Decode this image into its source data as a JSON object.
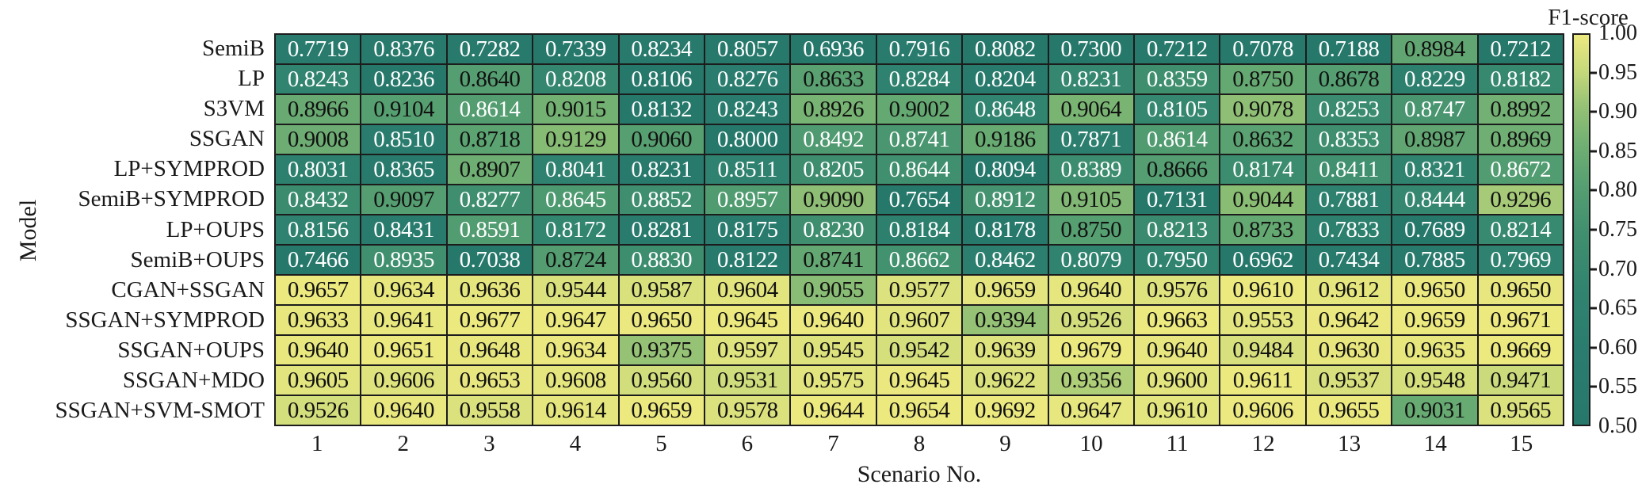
{
  "chart_data": {
    "type": "heatmap",
    "title": "",
    "xlabel": "Scenario No.",
    "ylabel": "Model",
    "x_categories": [
      "1",
      "2",
      "3",
      "4",
      "5",
      "6",
      "7",
      "8",
      "9",
      "10",
      "11",
      "12",
      "13",
      "14",
      "15"
    ],
    "models": [
      "SemiB",
      "LP",
      "S3VM",
      "SSGAN",
      "LP+SYMPROD",
      "SemiB+SYMPROD",
      "LP+OUPS",
      "SemiB+OUPS",
      "CGAN+SSGAN",
      "SSGAN+SYMPROD",
      "SSGAN+OUPS",
      "SSGAN+MDO",
      "SSGAN+SVM-SMOT"
    ],
    "values": [
      [
        0.7719,
        0.8376,
        0.7282,
        0.7339,
        0.8234,
        0.8057,
        0.6936,
        0.7916,
        0.8082,
        0.73,
        0.7212,
        0.7078,
        0.7188,
        0.8984,
        0.7212
      ],
      [
        0.8243,
        0.8236,
        0.864,
        0.8208,
        0.8106,
        0.8276,
        0.8633,
        0.8284,
        0.8204,
        0.8231,
        0.8359,
        0.875,
        0.8678,
        0.8229,
        0.8182
      ],
      [
        0.8966,
        0.9104,
        0.8614,
        0.9015,
        0.8132,
        0.8243,
        0.8926,
        0.9002,
        0.8648,
        0.9064,
        0.8105,
        0.9078,
        0.8253,
        0.8747,
        0.8992
      ],
      [
        0.9008,
        0.851,
        0.8718,
        0.9129,
        0.906,
        0.8,
        0.8492,
        0.8741,
        0.9186,
        0.7871,
        0.8614,
        0.8632,
        0.8353,
        0.8987,
        0.8969
      ],
      [
        0.8031,
        0.8365,
        0.8907,
        0.8041,
        0.8231,
        0.8511,
        0.8205,
        0.8644,
        0.8094,
        0.8389,
        0.8666,
        0.8174,
        0.8411,
        0.8321,
        0.8672
      ],
      [
        0.8432,
        0.9097,
        0.8277,
        0.8645,
        0.8852,
        0.8957,
        0.909,
        0.7654,
        0.8912,
        0.9105,
        0.7131,
        0.9044,
        0.7881,
        0.8444,
        0.9296
      ],
      [
        0.8156,
        0.8431,
        0.8591,
        0.8172,
        0.8281,
        0.8175,
        0.823,
        0.8184,
        0.8178,
        0.875,
        0.8213,
        0.8733,
        0.7833,
        0.7689,
        0.8214
      ],
      [
        0.7466,
        0.8935,
        0.7038,
        0.8724,
        0.883,
        0.8122,
        0.8741,
        0.8662,
        0.8462,
        0.8079,
        0.795,
        0.6962,
        0.7434,
        0.7885,
        0.7969
      ],
      [
        0.9657,
        0.9634,
        0.9636,
        0.9544,
        0.9587,
        0.9604,
        0.9055,
        0.9577,
        0.9659,
        0.964,
        0.9576,
        0.961,
        0.9612,
        0.965,
        0.965
      ],
      [
        0.9633,
        0.9641,
        0.9677,
        0.9647,
        0.965,
        0.9645,
        0.964,
        0.9607,
        0.9394,
        0.9526,
        0.9663,
        0.9553,
        0.9642,
        0.9659,
        0.9671
      ],
      [
        0.964,
        0.9651,
        0.9648,
        0.9634,
        0.9375,
        0.9597,
        0.9545,
        0.9542,
        0.9639,
        0.9679,
        0.964,
        0.9484,
        0.963,
        0.9635,
        0.9669
      ],
      [
        0.9605,
        0.9606,
        0.9653,
        0.9608,
        0.956,
        0.9531,
        0.9575,
        0.9645,
        0.9622,
        0.9356,
        0.96,
        0.9611,
        0.9537,
        0.9548,
        0.9471
      ],
      [
        0.9526,
        0.964,
        0.9558,
        0.9614,
        0.9659,
        0.9578,
        0.9644,
        0.9654,
        0.9692,
        0.9647,
        0.961,
        0.9606,
        0.9655,
        0.9031,
        0.9565
      ]
    ],
    "value_format_decimals": 4,
    "colorbar": {
      "label": "F1-score",
      "tick_labels": [
        "1.00",
        "0.95",
        "0.90",
        "0.85",
        "0.80",
        "0.75",
        "0.70",
        "0.65",
        "0.60",
        "0.55",
        "0.50"
      ],
      "vmin": 0.5,
      "vmax": 1.0
    },
    "colormap_stops": [
      [
        0.0,
        "#26786b"
      ],
      [
        0.2,
        "#2a7d6e"
      ],
      [
        0.35,
        "#31846f"
      ],
      [
        0.5,
        "#41906f"
      ],
      [
        0.62,
        "#57a071"
      ],
      [
        0.72,
        "#71b073"
      ],
      [
        0.82,
        "#97c375"
      ],
      [
        0.9,
        "#c3d77a"
      ],
      [
        1.0,
        "#ece97f"
      ]
    ],
    "annotation_text_colors": {
      "dark": "#111111",
      "light": "#ffffff"
    },
    "gridline_color": "#1c1c1c",
    "legend_position": "right",
    "grid": true
  }
}
